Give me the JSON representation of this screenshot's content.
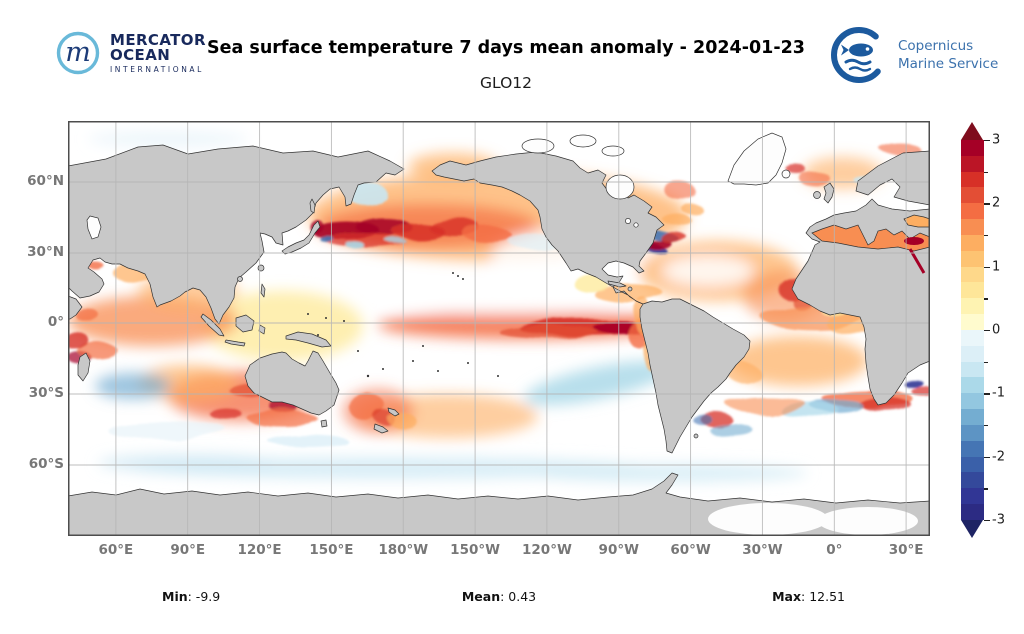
{
  "header": {
    "title": "Sea surface temperature 7 days mean anomaly - 2024-01-23",
    "subtitle": "GLO12",
    "mercator": {
      "monogram": "m",
      "name": "MERCATOR",
      "name2": "OCEAN",
      "tagline": "INTERNATIONAL"
    },
    "copernicus": {
      "line1": "Copernicus",
      "line2": "Marine Service"
    }
  },
  "map": {
    "x_ticks": [
      "60°E",
      "90°E",
      "120°E",
      "150°E",
      "180°W",
      "150°W",
      "120°W",
      "90°W",
      "60°W",
      "30°W",
      "0°",
      "30°E"
    ],
    "y_ticks": [
      "60°N",
      "30°N",
      "0°",
      "30°S",
      "60°S"
    ]
  },
  "colorbar": {
    "tick_labels": [
      "3",
      "2",
      "1",
      "0",
      "-1",
      "-2",
      "-3"
    ],
    "over_color": "#7f0d1d",
    "under_color": "#1e2464",
    "segments": [
      "#a50026",
      "#bb1526",
      "#d73027",
      "#e34e35",
      "#f46d43",
      "#f88e52",
      "#fdae61",
      "#fdc372",
      "#fed88a",
      "#fee699",
      "#fef3b2",
      "#fffbce",
      "#eaf6fa",
      "#dceff7",
      "#c9e7f2",
      "#abd9e9",
      "#93c7e0",
      "#74add1",
      "#5d94c4",
      "#4575b4",
      "#3a60a9",
      "#34499b",
      "#313695",
      "#2c2b83"
    ]
  },
  "stats": {
    "items": [
      {
        "label": "Min",
        "value": "-9.9"
      },
      {
        "label": "Mean",
        "value": "0.43"
      },
      {
        "label": "Max",
        "value": "12.51"
      }
    ]
  },
  "chart_data": {
    "type": "heatmap",
    "title": "Sea surface temperature 7 days mean anomaly - 2024-01-23",
    "subtitle": "GLO12",
    "date": "2024-01-23",
    "variable": "sea surface temperature 7-day mean anomaly",
    "projection": "global equirectangular, Pacific-centered (map spans 40°E eastward to 40°E)",
    "x_axis": {
      "ticks": [
        "60°E",
        "90°E",
        "120°E",
        "150°E",
        "180°W",
        "150°W",
        "120°W",
        "90°W",
        "60°W",
        "30°W",
        "0°",
        "30°E"
      ]
    },
    "y_axis": {
      "ticks": [
        "60°N",
        "30°N",
        "0°",
        "30°S",
        "60°S"
      ]
    },
    "colorbar_range": [
      -3,
      3
    ],
    "colorbar_ticks": [
      3,
      2,
      1,
      0,
      -1,
      -2,
      -3
    ],
    "colorbar_minor_tick_step": 0.5,
    "colorbar_segment_step": 0.25,
    "stats": {
      "min": -9.9,
      "mean": 0.43,
      "max": 12.51
    },
    "land_color": "#c8c8c8",
    "notable_features": [
      "Strong El Niño warm tongue (+2 to +3) along the equatorial central/eastern Pacific reaching the South American coast",
      "Very strong warm eddies (>+3) in the Kuroshio extension east of Japan across the northwest Pacific",
      "Broad warm anomalies (+0.5 to +2) over the North Pacific, North Atlantic subtropics and off northwest Africa",
      "Mixed strong warm/cold eddies (-3 to +3) along the Gulf Stream front in the northwest Atlantic",
      "Cool band (about -1) in the southeast Pacific off Chile",
      "Cold patch (-1 to -2) in the southern Indian Ocean near 60°E, 40°S",
      "Strong warm eddy fields (+1 to +3) southwest/south of Australia, Tasman Sea and Agulhas retroflection",
      "Slightly cool circumpolar band (about -0.5) near 55-60°S around Antarctica",
      "Warm anomalies in Mediterranean, Red Sea and Barents/Norwegian seas"
    ]
  }
}
